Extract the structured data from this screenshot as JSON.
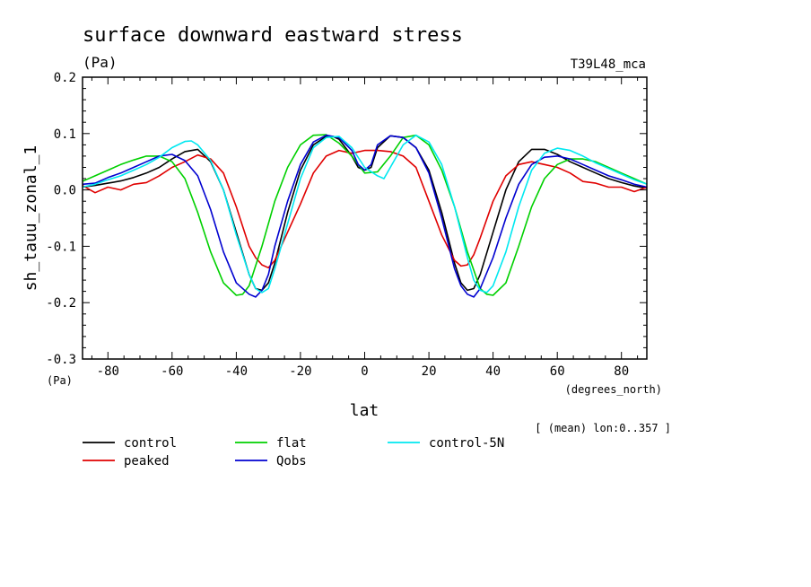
{
  "chart_data": {
    "type": "line",
    "title": "surface downward eastward stress",
    "units": "(Pa)",
    "experiment": "T39L48_mca",
    "ylabel": "sh_tauu_zonal_1",
    "y_units": "(Pa)",
    "xlabel": "lat",
    "x_units": "(degrees_north)",
    "footnote": "[ (mean) lon:0..357 ]",
    "xlim": [
      -87.9,
      87.9
    ],
    "ylim": [
      -0.3,
      0.2
    ],
    "xticks": [
      -80,
      -60,
      -40,
      -20,
      0,
      20,
      40,
      60,
      80
    ],
    "xtick_labels": [
      "-80",
      "-60",
      "-40",
      "-20",
      "0",
      "20",
      "40",
      "60",
      "80"
    ],
    "yticks": [
      -0.3,
      -0.2,
      -0.1,
      0.0,
      0.1,
      0.2
    ],
    "ytick_labels": [
      "-0.3",
      "-0.2",
      "-0.1",
      "0.0",
      "0.1",
      "0.2"
    ],
    "grid": false,
    "legend_position": "bottom",
    "series": [
      {
        "name": "control",
        "color": "#000000",
        "x": [
          -88,
          -84,
          -80,
          -76,
          -72,
          -68,
          -64,
          -60,
          -56,
          -52,
          -48,
          -44,
          -40,
          -36,
          -34,
          -32,
          -30,
          -28,
          -24,
          -20,
          -16,
          -12,
          -10,
          -8,
          -4,
          -2,
          0,
          2,
          4,
          8,
          12,
          16,
          20,
          24,
          28,
          30,
          32,
          34,
          36,
          40,
          44,
          48,
          52,
          56,
          60,
          64,
          68,
          72,
          76,
          80,
          84,
          88
        ],
        "y": [
          0.005,
          0.008,
          0.012,
          0.016,
          0.022,
          0.03,
          0.04,
          0.055,
          0.068,
          0.072,
          0.05,
          0.0,
          -0.075,
          -0.15,
          -0.175,
          -0.178,
          -0.165,
          -0.13,
          -0.04,
          0.035,
          0.08,
          0.095,
          0.095,
          0.09,
          0.06,
          0.04,
          0.035,
          0.04,
          0.075,
          0.096,
          0.093,
          0.075,
          0.035,
          -0.04,
          -0.13,
          -0.165,
          -0.178,
          -0.175,
          -0.15,
          -0.075,
          0.0,
          0.05,
          0.072,
          0.072,
          0.063,
          0.05,
          0.04,
          0.03,
          0.02,
          0.013,
          0.007,
          0.003
        ]
      },
      {
        "name": "peaked",
        "color": "#e00000",
        "x": [
          -88,
          -84,
          -80,
          -76,
          -72,
          -68,
          -64,
          -60,
          -56,
          -52,
          -48,
          -44,
          -40,
          -36,
          -34,
          -32,
          -30,
          -28,
          -24,
          -20,
          -16,
          -12,
          -8,
          -4,
          0,
          4,
          8,
          12,
          16,
          20,
          24,
          28,
          30,
          32,
          34,
          36,
          40,
          44,
          48,
          52,
          56,
          60,
          64,
          68,
          72,
          76,
          80,
          84,
          88
        ],
        "y": [
          0.008,
          -0.005,
          0.005,
          0.0,
          0.01,
          0.013,
          0.025,
          0.04,
          0.05,
          0.062,
          0.055,
          0.03,
          -0.03,
          -0.1,
          -0.12,
          -0.133,
          -0.138,
          -0.125,
          -0.075,
          -0.025,
          0.03,
          0.06,
          0.07,
          0.065,
          0.07,
          0.07,
          0.068,
          0.06,
          0.04,
          -0.02,
          -0.08,
          -0.125,
          -0.135,
          -0.133,
          -0.115,
          -0.085,
          -0.02,
          0.025,
          0.045,
          0.05,
          0.045,
          0.04,
          0.03,
          0.015,
          0.012,
          0.005,
          0.005,
          -0.003,
          0.005
        ]
      },
      {
        "name": "flat",
        "color": "#00d000",
        "x": [
          -88,
          -84,
          -80,
          -76,
          -72,
          -68,
          -64,
          -60,
          -56,
          -52,
          -48,
          -44,
          -40,
          -38,
          -36,
          -32,
          -28,
          -24,
          -20,
          -16,
          -12,
          -8,
          -4,
          0,
          4,
          8,
          12,
          16,
          20,
          24,
          28,
          32,
          36,
          38,
          40,
          44,
          48,
          52,
          56,
          60,
          64,
          68,
          72,
          76,
          80,
          84,
          88
        ],
        "y": [
          0.015,
          0.025,
          0.035,
          0.045,
          0.053,
          0.06,
          0.06,
          0.05,
          0.02,
          -0.04,
          -0.11,
          -0.165,
          -0.187,
          -0.185,
          -0.17,
          -0.1,
          -0.02,
          0.04,
          0.08,
          0.097,
          0.098,
          0.083,
          0.06,
          0.03,
          0.032,
          0.06,
          0.093,
          0.097,
          0.08,
          0.035,
          -0.03,
          -0.11,
          -0.175,
          -0.185,
          -0.187,
          -0.165,
          -0.1,
          -0.03,
          0.02,
          0.045,
          0.055,
          0.055,
          0.05,
          0.04,
          0.03,
          0.02,
          0.01
        ]
      },
      {
        "name": "Qobs",
        "color": "#0000d0",
        "x": [
          -88,
          -84,
          -80,
          -76,
          -72,
          -68,
          -64,
          -60,
          -56,
          -52,
          -48,
          -44,
          -40,
          -36,
          -34,
          -32,
          -30,
          -28,
          -24,
          -20,
          -16,
          -12,
          -8,
          -4,
          -2,
          0,
          2,
          4,
          8,
          12,
          16,
          20,
          24,
          28,
          30,
          32,
          34,
          36,
          40,
          44,
          48,
          52,
          56,
          60,
          64,
          68,
          72,
          76,
          80,
          84,
          88
        ],
        "y": [
          0.01,
          0.012,
          0.022,
          0.03,
          0.04,
          0.05,
          0.06,
          0.063,
          0.052,
          0.025,
          -0.035,
          -0.11,
          -0.165,
          -0.185,
          -0.19,
          -0.178,
          -0.15,
          -0.1,
          -0.02,
          0.045,
          0.085,
          0.097,
          0.093,
          0.07,
          0.045,
          0.035,
          0.045,
          0.08,
          0.096,
          0.093,
          0.075,
          0.03,
          -0.05,
          -0.14,
          -0.17,
          -0.185,
          -0.19,
          -0.175,
          -0.12,
          -0.05,
          0.01,
          0.045,
          0.058,
          0.06,
          0.055,
          0.045,
          0.035,
          0.025,
          0.018,
          0.01,
          0.005
        ]
      },
      {
        "name": "control-5N",
        "color": "#00e8f0",
        "x": [
          -88,
          -84,
          -80,
          -76,
          -72,
          -68,
          -64,
          -60,
          -56,
          -54,
          -52,
          -48,
          -44,
          -40,
          -36,
          -34,
          -32,
          -30,
          -28,
          -24,
          -20,
          -16,
          -12,
          -8,
          -4,
          0,
          4,
          6,
          8,
          12,
          16,
          20,
          24,
          28,
          32,
          34,
          36,
          38,
          40,
          44,
          48,
          52,
          56,
          60,
          64,
          68,
          72,
          76,
          80,
          84,
          88
        ],
        "y": [
          0.005,
          0.01,
          0.018,
          0.025,
          0.035,
          0.045,
          0.058,
          0.075,
          0.086,
          0.087,
          0.08,
          0.052,
          0.0,
          -0.08,
          -0.15,
          -0.175,
          -0.182,
          -0.175,
          -0.14,
          -0.06,
          0.02,
          0.075,
          0.093,
          0.095,
          0.075,
          0.04,
          0.025,
          0.02,
          0.04,
          0.08,
          0.097,
          0.085,
          0.045,
          -0.03,
          -0.12,
          -0.16,
          -0.178,
          -0.182,
          -0.17,
          -0.11,
          -0.03,
          0.035,
          0.065,
          0.074,
          0.07,
          0.06,
          0.048,
          0.038,
          0.028,
          0.018,
          0.01
        ]
      }
    ]
  },
  "legend": {
    "items": [
      {
        "name": "control",
        "color": "#000000"
      },
      {
        "name": "flat",
        "color": "#00d000"
      },
      {
        "name": "control-5N",
        "color": "#00e8f0"
      },
      {
        "name": "peaked",
        "color": "#e00000"
      },
      {
        "name": "Qobs",
        "color": "#0000d0"
      }
    ]
  }
}
